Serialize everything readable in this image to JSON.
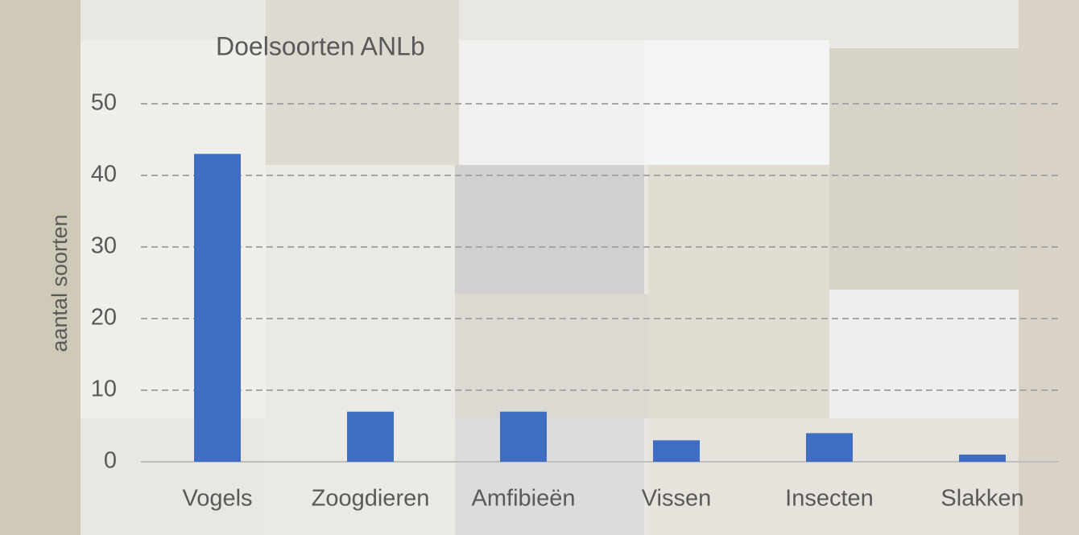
{
  "chart_data": {
    "type": "bar",
    "title": "Doelsoorten ANLb",
    "y_label": "aantal soorten",
    "categories": [
      "Vogels",
      "Zoogdieren",
      "Amfibieën",
      "Vissen",
      "Insecten",
      "Slakken"
    ],
    "values": [
      43,
      7,
      7,
      3,
      4,
      1
    ],
    "color": "#3f6dc1",
    "ylim": [
      0,
      50
    ],
    "yticks": [
      0,
      10,
      20,
      30,
      40,
      50
    ],
    "grid": true
  }
}
